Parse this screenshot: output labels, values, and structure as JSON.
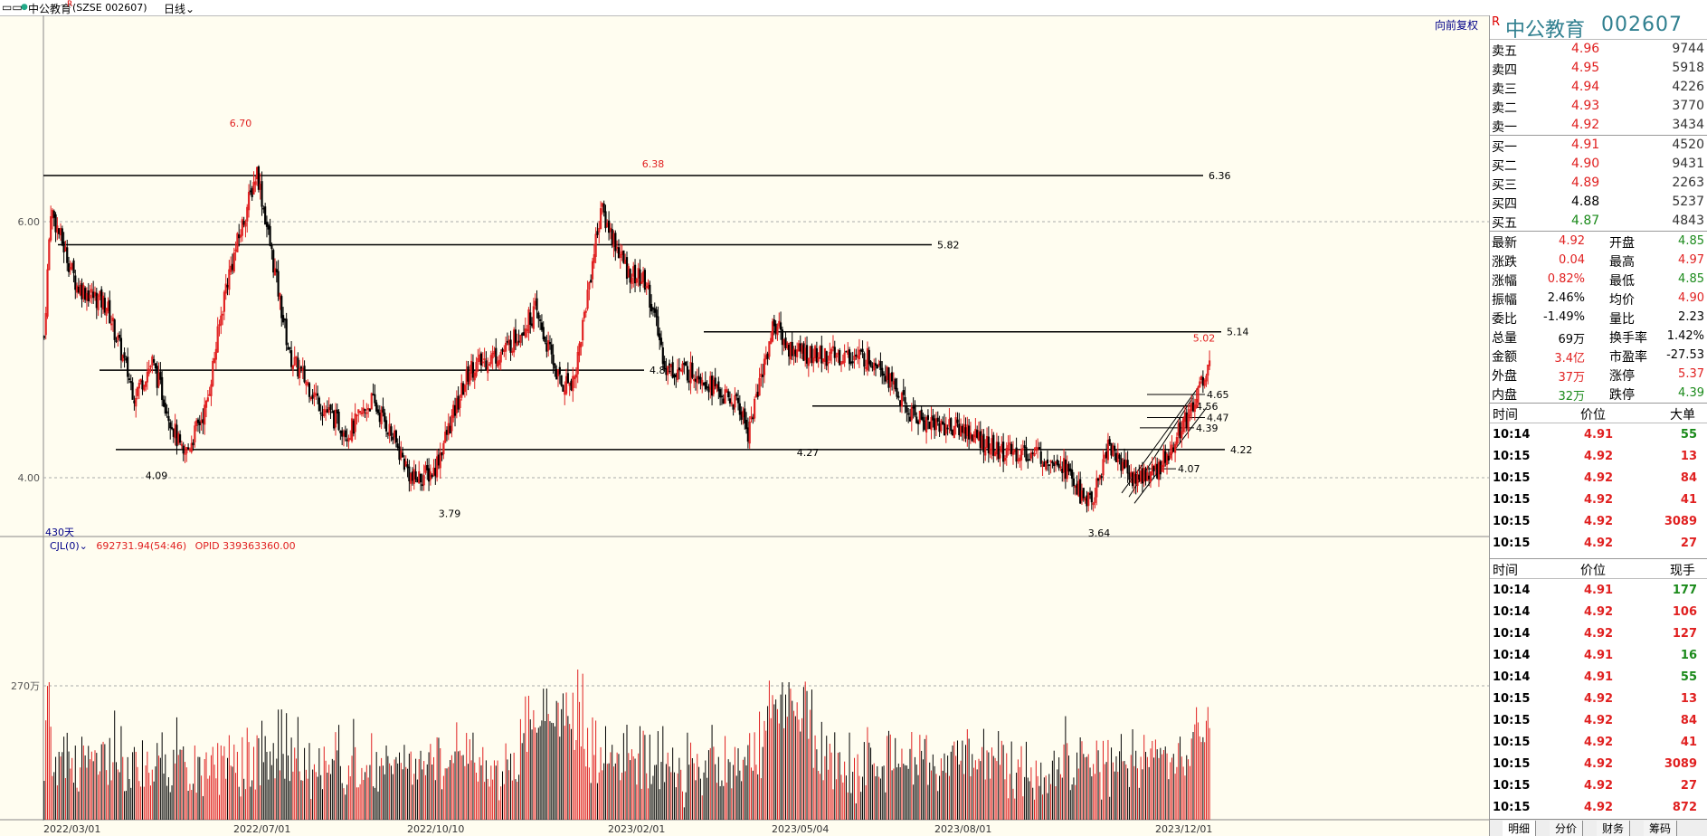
{
  "topbar": {
    "stock_label": "中公教育",
    "market_code": "(SZSE 002607)",
    "period": "日线"
  },
  "chart": {
    "adjust_label": "向前复权",
    "price_y_labels": [
      "6.00",
      "4.00"
    ],
    "days_label": "430天",
    "x_labels": [
      "2022/03/01",
      "2022/07/01",
      "2022/10/10",
      "2023/02/01",
      "2023/05/04",
      "2023/08/01",
      "2023/12/01"
    ],
    "peak_labels": [
      "6.70",
      "6.38",
      "5.02"
    ],
    "trough_labels": [
      "4.09",
      "3.79",
      "4.27",
      "3.64"
    ],
    "level_labels": [
      "6.36",
      "5.82",
      "5.14",
      "4.84",
      "4.65",
      "4.56",
      "4.47",
      "4.39",
      "4.22",
      "4.07"
    ],
    "colors": {
      "up": "#e02020",
      "down": "#000000",
      "bg": "#fffdf0"
    }
  },
  "volume": {
    "indicator": "CJL(0)",
    "value_text": "692731.94(54:46)",
    "opid_text": "OPID 339363360.00",
    "y_label": "270万"
  },
  "panel": {
    "r_badge": "R",
    "name": "中公教育",
    "code": "002607",
    "asks": [
      {
        "label": "卖五",
        "price": "4.96",
        "vol": "9744",
        "cls": "red"
      },
      {
        "label": "卖四",
        "price": "4.95",
        "vol": "5918",
        "cls": "red"
      },
      {
        "label": "卖三",
        "price": "4.94",
        "vol": "4226",
        "cls": "red"
      },
      {
        "label": "卖二",
        "price": "4.93",
        "vol": "3770",
        "cls": "red"
      },
      {
        "label": "卖一",
        "price": "4.92",
        "vol": "3434",
        "cls": "red"
      }
    ],
    "bids": [
      {
        "label": "买一",
        "price": "4.91",
        "vol": "4520",
        "cls": "red"
      },
      {
        "label": "买二",
        "price": "4.90",
        "vol": "9431",
        "cls": "red"
      },
      {
        "label": "买三",
        "price": "4.89",
        "vol": "2263",
        "cls": "red"
      },
      {
        "label": "买四",
        "price": "4.88",
        "vol": "5237",
        "cls": "blk"
      },
      {
        "label": "买五",
        "price": "4.87",
        "vol": "4843",
        "cls": "green"
      }
    ],
    "quotes": [
      {
        "l1": "最新",
        "v1": "4.92",
        "c1": "red",
        "l2": "开盘",
        "v2": "4.85",
        "c2": "green"
      },
      {
        "l1": "涨跌",
        "v1": "0.04",
        "c1": "red",
        "l2": "最高",
        "v2": "4.97",
        "c2": "red"
      },
      {
        "l1": "涨幅",
        "v1": "0.82%",
        "c1": "red",
        "l2": "最低",
        "v2": "4.85",
        "c2": "green"
      },
      {
        "l1": "振幅",
        "v1": "2.46%",
        "c1": "blk",
        "l2": "均价",
        "v2": "4.90",
        "c2": "red"
      },
      {
        "l1": "委比",
        "v1": "-1.49%",
        "c1": "blk",
        "l2": "量比",
        "v2": "2.23",
        "c2": "blk"
      },
      {
        "l1": "总量",
        "v1": "69万",
        "c1": "blk",
        "l2": "换手率",
        "v2": "1.42%",
        "c2": "blk"
      },
      {
        "l1": "金额",
        "v1": "3.4亿",
        "c1": "red",
        "l2": "市盈率",
        "v2": "-27.53",
        "c2": "blk"
      },
      {
        "l1": "外盘",
        "v1": "37万",
        "c1": "red",
        "l2": "涨停",
        "v2": "5.37",
        "c2": "red"
      },
      {
        "l1": "内盘",
        "v1": "32万",
        "c1": "green",
        "l2": "跌停",
        "v2": "4.39",
        "c2": "green"
      }
    ],
    "big_head": {
      "time": "时间",
      "price": "价位",
      "vol": "大单"
    },
    "big_trades": [
      {
        "time": "10:14",
        "price": "4.91",
        "vol": "55",
        "pc": "red",
        "vc": "green"
      },
      {
        "time": "10:15",
        "price": "4.92",
        "vol": "13",
        "pc": "red",
        "vc": "red"
      },
      {
        "time": "10:15",
        "price": "4.92",
        "vol": "84",
        "pc": "red",
        "vc": "red"
      },
      {
        "time": "10:15",
        "price": "4.92",
        "vol": "41",
        "pc": "red",
        "vc": "red"
      },
      {
        "time": "10:15",
        "price": "4.92",
        "vol": "3089",
        "pc": "red",
        "vc": "red"
      },
      {
        "time": "10:15",
        "price": "4.92",
        "vol": "27",
        "pc": "red",
        "vc": "red"
      }
    ],
    "tick_head": {
      "time": "时间",
      "price": "价位",
      "vol": "现手"
    },
    "ticks": [
      {
        "time": "10:14",
        "price": "4.91",
        "vol": "177",
        "pc": "red",
        "vc": "green"
      },
      {
        "time": "10:14",
        "price": "4.92",
        "vol": "106",
        "pc": "red",
        "vc": "red"
      },
      {
        "time": "10:14",
        "price": "4.92",
        "vol": "127",
        "pc": "red",
        "vc": "red"
      },
      {
        "time": "10:14",
        "price": "4.91",
        "vol": "16",
        "pc": "red",
        "vc": "green"
      },
      {
        "time": "10:14",
        "price": "4.91",
        "vol": "55",
        "pc": "red",
        "vc": "green"
      },
      {
        "time": "10:15",
        "price": "4.92",
        "vol": "13",
        "pc": "red",
        "vc": "red"
      },
      {
        "time": "10:15",
        "price": "4.92",
        "vol": "84",
        "pc": "red",
        "vc": "red"
      },
      {
        "time": "10:15",
        "price": "4.92",
        "vol": "41",
        "pc": "red",
        "vc": "red"
      },
      {
        "time": "10:15",
        "price": "4.92",
        "vol": "3089",
        "pc": "red",
        "vc": "red"
      },
      {
        "time": "10:15",
        "price": "4.92",
        "vol": "27",
        "pc": "red",
        "vc": "red"
      },
      {
        "time": "10:15",
        "price": "4.92",
        "vol": "872",
        "pc": "red",
        "vc": "red"
      }
    ],
    "tabs": [
      "明细",
      "分价",
      "财务",
      "筹码"
    ]
  }
}
